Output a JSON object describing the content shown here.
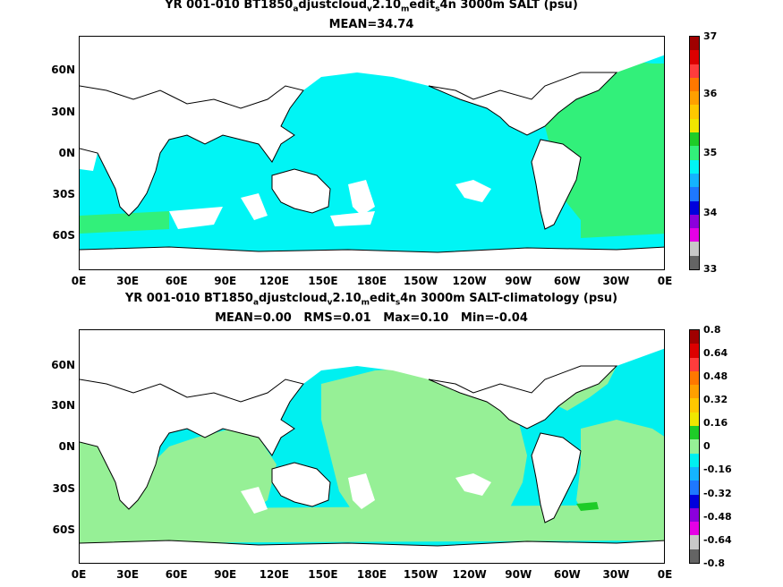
{
  "panels": [
    {
      "title_parts": [
        "YR 001-010 BT1850",
        "a",
        "djustcloud",
        "v",
        "2.10",
        "m",
        "edit",
        "s",
        "4n 3000m SALT (psu)"
      ],
      "stats": "MEAN=34.74",
      "lat_labels": [
        "60N",
        "30N",
        "0N",
        "30S",
        "60S"
      ],
      "lon_labels": [
        "0E",
        "30E",
        "60E",
        "90E",
        "120E",
        "150E",
        "180E",
        "150W",
        "120W",
        "90W",
        "60W",
        "30W",
        "0E"
      ],
      "colorbar_labels": [
        "37",
        "36",
        "35",
        "34",
        "33"
      ],
      "colorbar_colors": [
        "#a00000",
        "#dc0000",
        "#ff3c3c",
        "#ff7800",
        "#ffa000",
        "#ffc800",
        "#f0e600",
        "#1ecc28",
        "#32f07a",
        "#00f5f5",
        "#14b4ff",
        "#1e78ff",
        "#0000dc",
        "#8c00dc",
        "#e600e6",
        "#c8c8c8",
        "#646464"
      ]
    },
    {
      "title_parts": [
        "YR 001-010 BT1850",
        "a",
        "djustcloud",
        "v",
        "2.10",
        "m",
        "edit",
        "s",
        "4n 3000m SALT-climatology (psu)"
      ],
      "stats": "MEAN=0.00   RMS=0.01   Max=0.10   Min=-0.04",
      "lat_labels": [
        "60N",
        "30N",
        "0N",
        "30S",
        "60S"
      ],
      "lon_labels": [
        "0E",
        "30E",
        "60E",
        "90E",
        "120E",
        "150E",
        "180E",
        "150W",
        "120W",
        "90W",
        "60W",
        "30W",
        "0E"
      ],
      "colorbar_labels": [
        "0.8",
        "0.64",
        "0.48",
        "0.32",
        "0.16",
        "0",
        "-0.16",
        "-0.32",
        "-0.48",
        "-0.64",
        "-0.8"
      ],
      "colorbar_colors": [
        "#a00000",
        "#dc0000",
        "#ff3c3c",
        "#ff7800",
        "#ffa000",
        "#ffc800",
        "#f0e600",
        "#1ecc28",
        "#96f096",
        "#00f0f0",
        "#14b4ff",
        "#1e78ff",
        "#0000dc",
        "#8c00dc",
        "#e600e6",
        "#c8c8c8",
        "#646464"
      ]
    }
  ],
  "map_colors": {
    "ocean_top": "#00f5f5",
    "patch_top": "#32f07a",
    "ocean_bottom": "#00f0f0",
    "patch_bottom": "#96f096",
    "land": "#ffffff",
    "coast": "#000000"
  }
}
